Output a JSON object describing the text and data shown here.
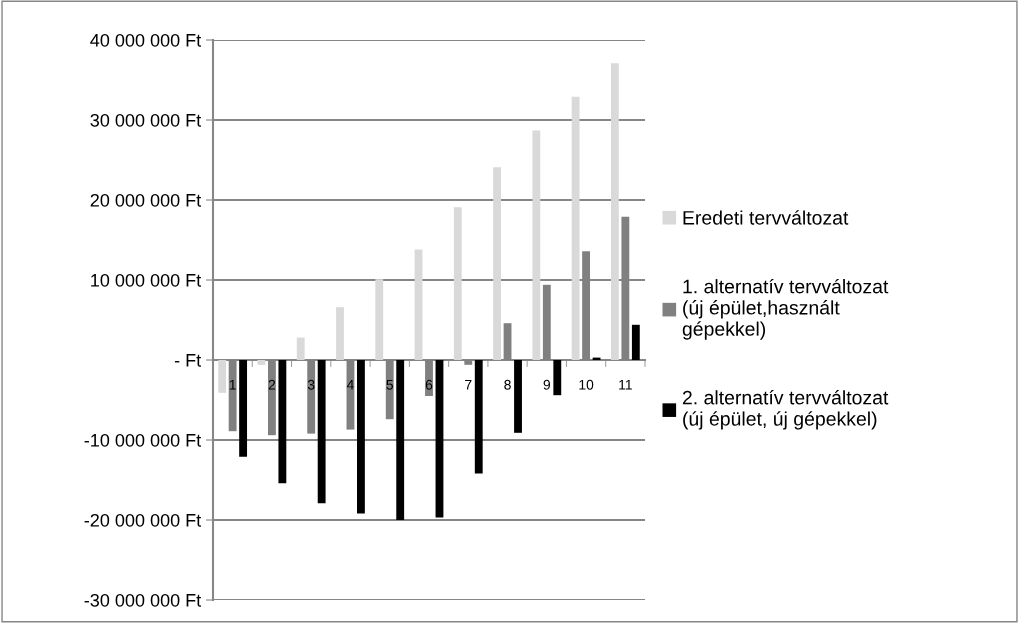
{
  "chart_data": {
    "type": "bar",
    "categories": [
      "1",
      "2",
      "3",
      "4",
      "5",
      "6",
      "7",
      "8",
      "9",
      "10",
      "11"
    ],
    "series": [
      {
        "name": "Eredeti tervváltozat",
        "color": "#d9d9d9",
        "values": [
          -4100000,
          -600000,
          2800000,
          6600000,
          10100000,
          13800000,
          19100000,
          24100000,
          28700000,
          32900000,
          37100000
        ]
      },
      {
        "name": "1. alternatív tervváltozat\n(új épület,használt\ngépekkel)",
        "color": "#808080",
        "values": [
          -8900000,
          -9400000,
          -9200000,
          -8700000,
          -7400000,
          -4500000,
          -600000,
          4600000,
          9400000,
          13600000,
          17900000
        ]
      },
      {
        "name": "2. alternatív tervváltozat\n(új épület, új gépekkel)",
        "color": "#000000",
        "values": [
          -12100000,
          -15400000,
          -17900000,
          -19200000,
          -20000000,
          -19700000,
          -14200000,
          -9100000,
          -4400000,
          300000,
          4400000
        ]
      }
    ],
    "ylim": [
      -30000000,
      40000000
    ],
    "yticks": [
      {
        "value": -30000000,
        "label": "-30 000 000 Ft"
      },
      {
        "value": -20000000,
        "label": "-20 000 000 Ft"
      },
      {
        "value": -10000000,
        "label": "-10 000 000 Ft"
      },
      {
        "value": 0,
        "label": "- Ft"
      },
      {
        "value": 10000000,
        "label": "10 000 000 Ft"
      },
      {
        "value": 20000000,
        "label": "20 000 000 Ft"
      },
      {
        "value": 30000000,
        "label": "30 000 000 Ft"
      },
      {
        "value": 40000000,
        "label": "40 000 000 Ft"
      }
    ],
    "grid": "y",
    "legend": "right"
  }
}
